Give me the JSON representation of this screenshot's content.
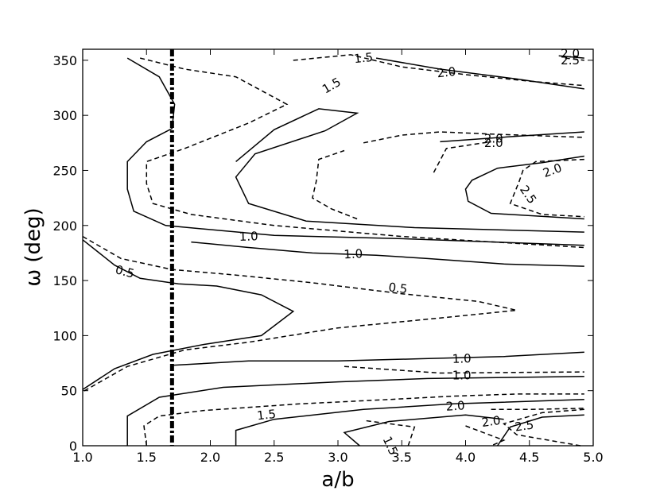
{
  "chart_data": {
    "type": "contour",
    "xlabel": "a/b",
    "ylabel": "ω (deg)",
    "xlim": [
      1.0,
      5.0
    ],
    "ylim": [
      0,
      360
    ],
    "xticks": [
      "1.0",
      "1.5",
      "2.0",
      "2.5",
      "3.0",
      "3.5",
      "4.0",
      "4.5",
      "5.0"
    ],
    "yticks": [
      "0",
      "50",
      "100",
      "150",
      "200",
      "250",
      "300",
      "350"
    ],
    "grid": false,
    "reference_line": {
      "x": 1.7,
      "style": "dash-dot"
    },
    "series": [
      {
        "style": "solid",
        "level": "0.5",
        "points": [
          [
            1.0,
            187
          ],
          [
            1.25,
            164
          ],
          [
            1.45,
            152
          ],
          [
            1.75,
            147
          ],
          [
            2.05,
            145
          ],
          [
            2.4,
            137
          ],
          [
            2.65,
            122
          ],
          [
            2.4,
            100
          ],
          [
            1.95,
            92
          ],
          [
            1.55,
            83
          ],
          [
            1.25,
            70
          ],
          [
            1.0,
            51
          ]
        ]
      },
      {
        "style": "solid",
        "level": "1.5",
        "points": [
          [
            1.35,
            0
          ],
          [
            1.35,
            27
          ],
          [
            1.6,
            44
          ],
          [
            2.1,
            53
          ],
          [
            3.0,
            58
          ],
          [
            3.7,
            61
          ],
          [
            4.3,
            62
          ],
          [
            4.93,
            63
          ]
        ]
      },
      {
        "style": "solid",
        "level": "2.0",
        "points": [
          [
            4.93,
            28
          ],
          [
            4.6,
            26
          ],
          [
            4.35,
            17
          ],
          [
            4.25,
            0
          ]
        ]
      },
      {
        "style": "solid",
        "level": "1.0",
        "points": [
          [
            1.7,
            73
          ],
          [
            2.3,
            77
          ],
          [
            3.0,
            77
          ],
          [
            3.65,
            79
          ],
          [
            4.3,
            81
          ],
          [
            4.93,
            85
          ]
        ]
      },
      {
        "style": "solid",
        "level": "1.5",
        "points": [
          [
            2.2,
            0
          ],
          [
            2.2,
            14
          ],
          [
            2.5,
            24
          ],
          [
            3.2,
            33
          ],
          [
            3.9,
            38
          ],
          [
            4.93,
            42
          ]
        ]
      },
      {
        "style": "solid",
        "level": "2.0",
        "points": [
          [
            3.17,
            0
          ],
          [
            3.05,
            12
          ],
          [
            3.4,
            22
          ],
          [
            4.0,
            28
          ],
          [
            4.3,
            24
          ]
        ]
      },
      {
        "style": "solid",
        "level": "1.0",
        "points": [
          [
            1.35,
            352
          ],
          [
            1.6,
            335
          ],
          [
            1.72,
            310
          ],
          [
            1.7,
            288
          ],
          [
            1.5,
            276
          ],
          [
            1.35,
            258
          ],
          [
            1.35,
            233
          ],
          [
            1.4,
            213
          ],
          [
            1.65,
            200
          ],
          [
            2.5,
            191
          ],
          [
            3.5,
            188
          ],
          [
            4.93,
            182
          ]
        ]
      },
      {
        "style": "solid",
        "level": "1.0",
        "points": [
          [
            2.2,
            258
          ],
          [
            2.5,
            287
          ],
          [
            2.85,
            306
          ],
          [
            3.15,
            302
          ],
          [
            2.9,
            286
          ],
          [
            2.35,
            265
          ],
          [
            2.2,
            244
          ],
          [
            2.3,
            220
          ],
          [
            2.75,
            204
          ],
          [
            3.6,
            198
          ],
          [
            4.93,
            194
          ]
        ]
      },
      {
        "style": "solid",
        "level": "1.5",
        "points": [
          [
            3.3,
            352
          ],
          [
            3.8,
            342
          ],
          [
            4.4,
            333
          ],
          [
            4.93,
            324
          ]
        ]
      },
      {
        "style": "solid",
        "level": "2.0",
        "points": [
          [
            3.8,
            276
          ],
          [
            4.4,
            281
          ],
          [
            4.93,
            285
          ]
        ]
      },
      {
        "style": "solid",
        "level": "2.0",
        "points": [
          [
            4.93,
            263
          ],
          [
            4.6,
            257
          ],
          [
            4.25,
            252
          ],
          [
            4.05,
            241
          ],
          [
            4.0,
            233
          ],
          [
            4.02,
            222
          ],
          [
            4.2,
            211
          ],
          [
            4.93,
            206
          ]
        ]
      },
      {
        "style": "solid",
        "level": "2.0",
        "points": [
          [
            4.73,
            354
          ],
          [
            4.93,
            352
          ]
        ]
      },
      {
        "style": "solid",
        "level": "1.0",
        "points": [
          [
            4.93,
            163
          ],
          [
            4.3,
            165
          ],
          [
            3.7,
            170
          ],
          [
            3.3,
            173
          ],
          [
            2.8,
            175
          ],
          [
            2.3,
            180
          ],
          [
            1.85,
            185
          ]
        ]
      },
      {
        "style": "dashed",
        "level": "0.5",
        "points": [
          [
            1.0,
            190
          ],
          [
            1.3,
            170
          ],
          [
            1.7,
            160
          ],
          [
            2.2,
            155
          ],
          [
            2.8,
            148
          ],
          [
            3.5,
            138
          ],
          [
            4.1,
            131
          ],
          [
            4.4,
            123
          ],
          [
            3.8,
            116
          ],
          [
            3.0,
            107
          ],
          [
            2.3,
            94
          ],
          [
            1.8,
            87
          ],
          [
            1.35,
            72
          ],
          [
            1.0,
            49
          ]
        ]
      },
      {
        "style": "dashed",
        "level": "1.0",
        "points": [
          [
            1.45,
            352
          ],
          [
            1.8,
            342
          ],
          [
            2.2,
            335
          ],
          [
            2.6,
            310
          ],
          [
            2.3,
            293
          ],
          [
            1.8,
            270
          ],
          [
            1.5,
            258
          ],
          [
            1.5,
            238
          ],
          [
            1.55,
            220
          ],
          [
            1.85,
            210
          ],
          [
            2.5,
            200
          ],
          [
            3.5,
            190
          ],
          [
            4.93,
            180
          ]
        ]
      },
      {
        "style": "dashed",
        "level": "1.5",
        "points": [
          [
            2.65,
            350
          ],
          [
            3.1,
            355
          ],
          [
            3.5,
            344
          ],
          [
            4.0,
            337
          ],
          [
            4.5,
            331
          ],
          [
            4.93,
            327
          ]
        ]
      },
      {
        "style": "dashed",
        "level": "1.0",
        "points": [
          [
            3.05,
            72
          ],
          [
            3.8,
            66
          ],
          [
            4.93,
            67
          ]
        ]
      },
      {
        "style": "dashed",
        "level": "2.0",
        "points": [
          [
            4.2,
            33
          ],
          [
            4.5,
            33
          ],
          [
            4.93,
            34
          ]
        ]
      },
      {
        "style": "dashed",
        "level": "1.5",
        "points": [
          [
            1.5,
            0
          ],
          [
            1.48,
            18
          ],
          [
            1.6,
            27
          ],
          [
            1.95,
            32
          ],
          [
            2.7,
            38
          ],
          [
            3.4,
            42
          ],
          [
            3.9,
            45
          ],
          [
            4.4,
            47
          ],
          [
            4.93,
            47
          ]
        ]
      },
      {
        "style": "dashed",
        "level": "1.5",
        "points": [
          [
            3.55,
            0
          ],
          [
            3.6,
            17
          ],
          [
            3.2,
            23
          ]
        ]
      },
      {
        "style": "dashed",
        "level": "2.0",
        "points": [
          [
            4.93,
            33
          ],
          [
            4.6,
            30
          ],
          [
            4.3,
            20
          ],
          [
            4.4,
            10
          ],
          [
            4.9,
            0
          ]
        ]
      },
      {
        "style": "dashed",
        "level": "2.0",
        "points": [
          [
            4.0,
            18
          ],
          [
            4.3,
            5
          ],
          [
            4.2,
            0
          ]
        ]
      },
      {
        "style": "dashed",
        "level": "1.5",
        "points": [
          [
            3.2,
            275
          ],
          [
            3.5,
            282
          ],
          [
            3.8,
            285
          ],
          [
            4.2,
            283
          ],
          [
            4.93,
            280
          ]
        ]
      },
      {
        "style": "dashed",
        "level": "1.5",
        "points": [
          [
            3.75,
            248
          ],
          [
            3.85,
            270
          ],
          [
            4.2,
            276
          ]
        ]
      },
      {
        "style": "dashed",
        "level": "1.5",
        "points": [
          [
            3.15,
            206
          ],
          [
            2.95,
            215
          ],
          [
            2.8,
            225
          ],
          [
            2.83,
            240
          ],
          [
            2.85,
            260
          ],
          [
            3.05,
            268
          ]
        ]
      },
      {
        "style": "dashed",
        "level": "2.5",
        "points": [
          [
            4.93,
            260
          ],
          [
            4.55,
            258
          ],
          [
            4.45,
            250
          ],
          [
            4.42,
            240
          ],
          [
            4.35,
            220
          ],
          [
            4.6,
            210
          ],
          [
            4.93,
            208
          ]
        ]
      },
      {
        "style": "dashed",
        "level": "2.5",
        "points": [
          [
            4.78,
            352
          ],
          [
            4.93,
            350
          ]
        ]
      }
    ],
    "contour_labels": [
      {
        "text": "0.5",
        "x": 1.33,
        "y": 158,
        "angle": 15
      },
      {
        "text": "0.5",
        "x": 3.47,
        "y": 143,
        "angle": 7
      },
      {
        "text": "1.0",
        "x": 2.3,
        "y": 190,
        "angle": -2
      },
      {
        "text": "1.0",
        "x": 3.12,
        "y": 174,
        "angle": -3
      },
      {
        "text": "1.0",
        "x": 3.97,
        "y": 79,
        "angle": -2
      },
      {
        "text": "1.0",
        "x": 3.97,
        "y": 64,
        "angle": 0
      },
      {
        "text": "1.5",
        "x": 2.44,
        "y": 28,
        "angle": -6
      },
      {
        "text": "1.5",
        "x": 3.2,
        "y": 352,
        "angle": -6
      },
      {
        "text": "1.5",
        "x": 2.95,
        "y": 327,
        "angle": -30
      },
      {
        "text": "1.5",
        "x": 3.41,
        "y": 0,
        "angle": 65
      },
      {
        "text": "2.0",
        "x": 3.92,
        "y": 36,
        "angle": -4
      },
      {
        "text": "2.0",
        "x": 3.85,
        "y": 339,
        "angle": -6
      },
      {
        "text": "2.0",
        "x": 4.2,
        "y": 22,
        "angle": -8
      },
      {
        "text": "2.0",
        "x": 4.22,
        "y": 279,
        "angle": 0
      },
      {
        "text": "2.0",
        "x": 4.22,
        "y": 275,
        "angle": 0
      },
      {
        "text": "2.0",
        "x": 4.68,
        "y": 250,
        "angle": -20
      },
      {
        "text": "2.5",
        "x": 4.46,
        "y": 18,
        "angle": -8
      },
      {
        "text": "2.5",
        "x": 4.49,
        "y": 228,
        "angle": 55
      },
      {
        "text": "2.0",
        "x": 4.82,
        "y": 356,
        "angle": 0
      },
      {
        "text": "2.5",
        "x": 4.82,
        "y": 350,
        "angle": 0
      }
    ]
  }
}
